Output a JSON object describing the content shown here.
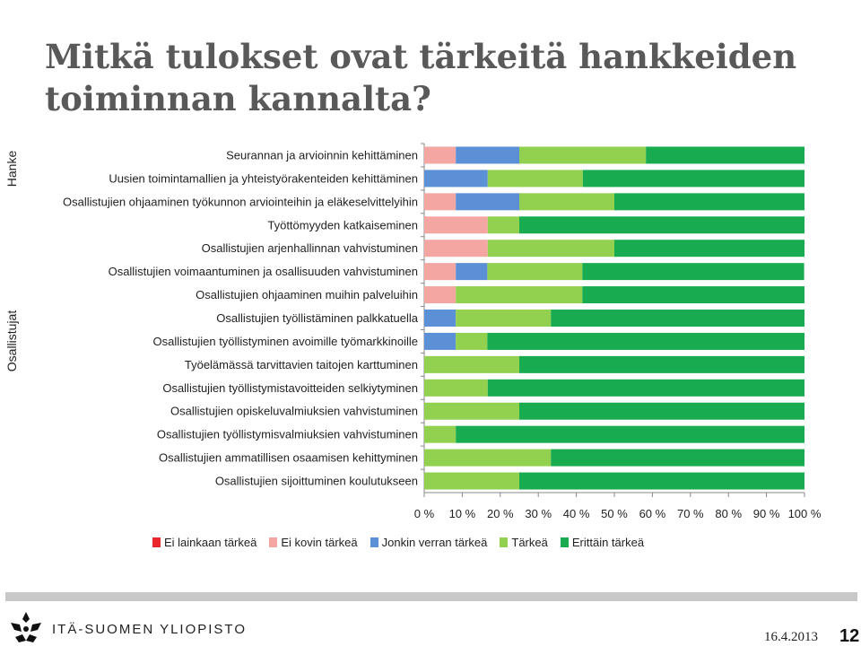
{
  "title": "Mitkä tulokset ovat tärkeitä hankkeiden toiminnan kannalta?",
  "footer": {
    "org": "ITÄ-SUOMEN YLIOPISTO",
    "date": "16.4.2013",
    "page": "12"
  },
  "colors": {
    "Ei lainkaan tärkeä": "#e8262b",
    "Ei kovin tärkeä": "#f4a6a3",
    "Jonkin verran tärkeä": "#5b8fd6",
    "Tärkeä": "#92d050",
    "Erittäin tärkeä": "#18ab4f"
  },
  "chart_data": {
    "type": "bar",
    "orientation": "horizontal",
    "stacked": "percent",
    "title": "Mitkä tulokset ovat tärkeitä hankkeiden toiminnan kannalta?",
    "xlabel": "",
    "ylabel": "",
    "xlim": [
      0,
      100
    ],
    "x_ticks": [
      "0 %",
      "10 %",
      "20 %",
      "30 %",
      "40 %",
      "50 %",
      "60 %",
      "70 %",
      "80 %",
      "90 %",
      "100 %"
    ],
    "legend_position": "bottom",
    "groups": [
      {
        "name": "Hanke",
        "start": 0,
        "end": 1
      },
      {
        "name": "Osallistujat",
        "start": 2,
        "end": 14
      }
    ],
    "categories": [
      "Seurannan ja arvioinnin kehittäminen",
      "Uusien toimintamallien ja yhteistyörakenteiden kehittäminen",
      "Osallistujien ohjaaminen työkunnon arviointeihin ja eläkeselvittelyihin",
      "Työttömyyden katkaiseminen",
      "Osallistujien arjenhallinnan vahvistuminen",
      "Osallistujien voimaantuminen ja osallisuuden vahvistuminen",
      "Osallistujien ohjaaminen muihin palveluihin",
      "Osallistujien työllistäminen palkkatuella",
      "Osallistujien työllistyminen avoimille työmarkkinoille",
      "Työelämässä tarvittavien taitojen karttuminen",
      "Osallistujien työllistymistavoitteiden selkiytyminen",
      "Osallistujien opiskeluvalmiuksien vahvistuminen",
      "Osallistujien työllistymisvalmiuksien vahvistuminen",
      "Osallistujien ammatillisen osaamisen kehittyminen",
      "Osallistujien sijoittuminen koulutukseen"
    ],
    "series": [
      {
        "name": "Ei lainkaan tärkeä",
        "values": [
          0,
          0,
          0,
          0,
          0,
          0,
          0,
          0,
          0,
          0,
          0,
          0,
          0,
          0,
          0
        ]
      },
      {
        "name": "Ei kovin tärkeä",
        "values": [
          8.3,
          0,
          8.3,
          16.7,
          16.7,
          8.3,
          8.3,
          0,
          0,
          0,
          0,
          0,
          0,
          0,
          0
        ]
      },
      {
        "name": "Jonkin verran tärkeä",
        "values": [
          16.7,
          16.7,
          16.7,
          0,
          0,
          8.3,
          0,
          8.3,
          8.3,
          0,
          0,
          0,
          0,
          0,
          0
        ]
      },
      {
        "name": "Tärkeä",
        "values": [
          33.3,
          25,
          25,
          8.3,
          33.3,
          25,
          33.3,
          25,
          8.3,
          25,
          16.7,
          25,
          8.3,
          33.3,
          25
        ]
      },
      {
        "name": "Erittäin tärkeä",
        "values": [
          41.7,
          58.3,
          50,
          75,
          50,
          58.3,
          58.4,
          66.7,
          83.4,
          75,
          83.3,
          75,
          91.7,
          66.7,
          75
        ]
      }
    ]
  }
}
